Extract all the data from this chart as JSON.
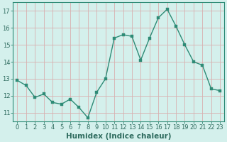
{
  "x": [
    0,
    1,
    2,
    3,
    4,
    5,
    6,
    7,
    8,
    9,
    10,
    11,
    12,
    13,
    14,
    15,
    16,
    17,
    18,
    19,
    20,
    21,
    22,
    23
  ],
  "y": [
    12.9,
    12.6,
    11.9,
    12.1,
    11.6,
    11.5,
    11.8,
    11.3,
    10.7,
    12.2,
    13.0,
    15.4,
    15.6,
    15.5,
    14.1,
    15.4,
    16.6,
    17.1,
    16.1,
    15.0,
    14.0,
    13.8,
    12.4,
    12.3
  ],
  "xlabel": "Humidex (Indice chaleur)",
  "ylim": [
    10.5,
    17.5
  ],
  "xlim": [
    -0.5,
    23.5
  ],
  "yticks": [
    11,
    12,
    13,
    14,
    15,
    16,
    17
  ],
  "xticks": [
    0,
    1,
    2,
    3,
    4,
    5,
    6,
    7,
    8,
    9,
    10,
    11,
    12,
    13,
    14,
    15,
    16,
    17,
    18,
    19,
    20,
    21,
    22,
    23
  ],
  "line_color": "#2e8b76",
  "marker_color": "#2e8b76",
  "bg_color": "#d4f0ec",
  "grid_color": "#d8b0b0",
  "axis_color": "#2e8b76",
  "tick_label_color": "#2e6b5e",
  "xlabel_fontsize": 7.5,
  "tick_fontsize": 6.0,
  "line_width": 1.0,
  "marker_size": 2.5
}
